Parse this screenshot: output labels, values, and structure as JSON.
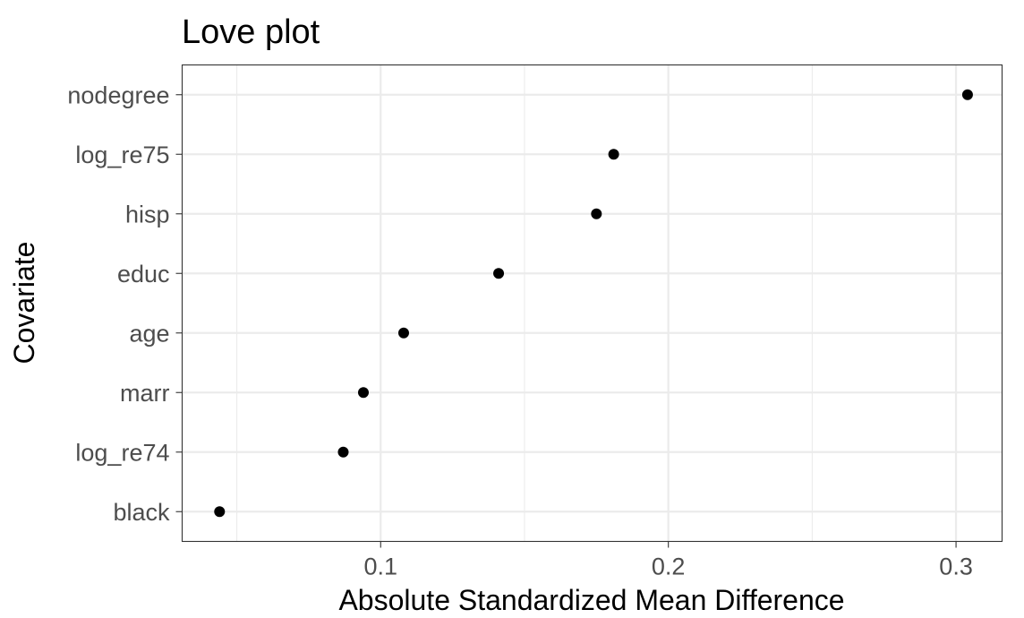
{
  "chart_data": {
    "type": "scatter",
    "title": "Love plot",
    "xlabel": "Absolute Standardized Mean Difference",
    "ylabel": "Covariate",
    "xlim": [
      0.031,
      0.316
    ],
    "x_ticks": [
      0.1,
      0.2,
      0.3
    ],
    "x_tick_labels": [
      "0.1",
      "0.2",
      "0.3"
    ],
    "x_minor_ticks": [
      0.05,
      0.15,
      0.25
    ],
    "categories": [
      "black",
      "log_re74",
      "marr",
      "age",
      "educ",
      "hisp",
      "log_re75",
      "nodegree"
    ],
    "values": [
      0.044,
      0.087,
      0.094,
      0.108,
      0.141,
      0.175,
      0.181,
      0.304
    ],
    "grid": true,
    "legend": "none",
    "point_color": "#000000"
  }
}
